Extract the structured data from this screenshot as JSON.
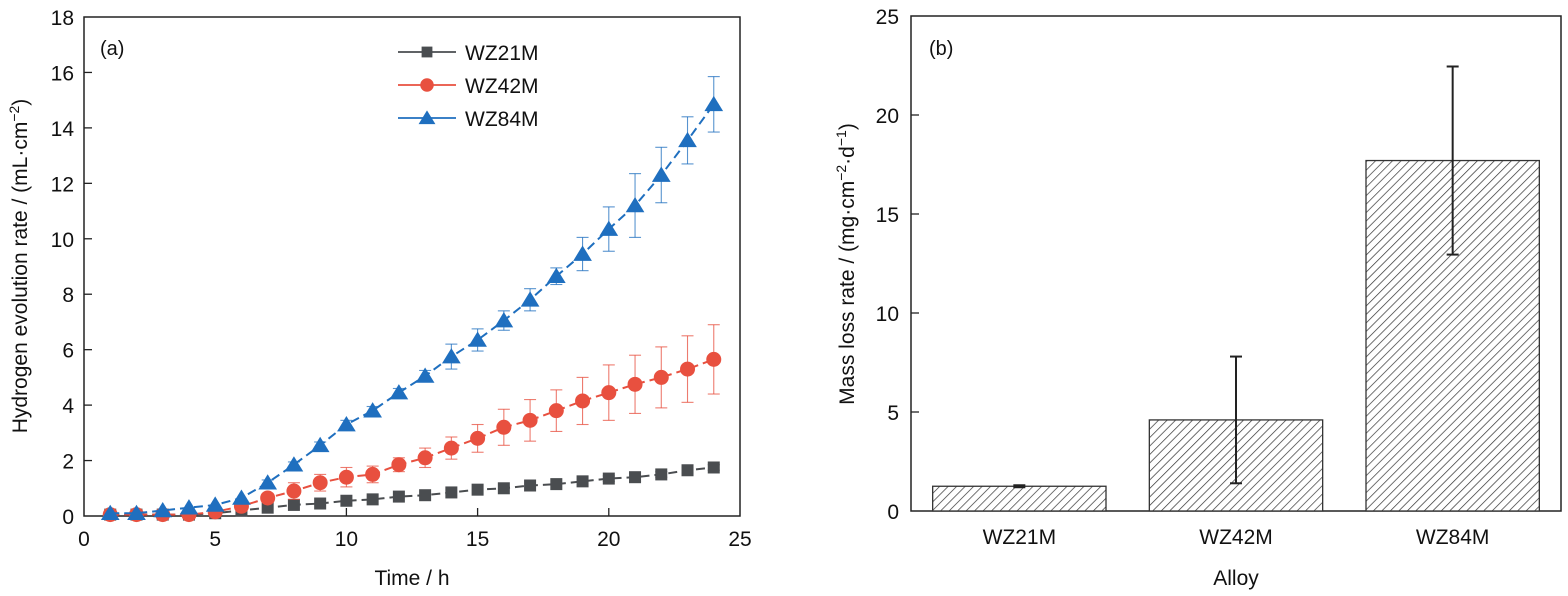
{
  "chart_data": [
    {
      "type": "line",
      "panel_label": "(a)",
      "title": "",
      "xlabel": "Time / h",
      "ylabel": "Hydrogen evolution rate / (mL·cm",
      "ylabel_sup": "−2",
      "ylabel_tail": ")",
      "xlim": [
        0,
        25
      ],
      "ylim": [
        0,
        18
      ],
      "xticks": [
        0,
        5,
        10,
        15,
        20,
        25
      ],
      "yticks": [
        0,
        2,
        4,
        6,
        8,
        10,
        12,
        14,
        16,
        18
      ],
      "grid": false,
      "legend_position": "top-center",
      "x": [
        1,
        2,
        3,
        4,
        5,
        6,
        7,
        8,
        9,
        10,
        11,
        12,
        13,
        14,
        15,
        16,
        17,
        18,
        19,
        20,
        21,
        22,
        23,
        24
      ],
      "series": [
        {
          "name": "WZ21M",
          "color": "#4a4d50",
          "marker": "square",
          "values": [
            0.05,
            0.05,
            0.05,
            0.05,
            0.1,
            0.2,
            0.3,
            0.4,
            0.45,
            0.55,
            0.6,
            0.7,
            0.75,
            0.85,
            0.95,
            1.0,
            1.1,
            1.15,
            1.25,
            1.35,
            1.4,
            1.5,
            1.65,
            1.75
          ],
          "errors": [
            0.02,
            0.02,
            0.02,
            0.02,
            0.03,
            0.03,
            0.04,
            0.05,
            0.05,
            0.06,
            0.06,
            0.06,
            0.07,
            0.07,
            0.07,
            0.08,
            0.08,
            0.08,
            0.09,
            0.1,
            0.15,
            0.1,
            0.1,
            0.1
          ]
        },
        {
          "name": "WZ42M",
          "color": "#e8503f",
          "marker": "circle",
          "values": [
            0.05,
            0.05,
            0.05,
            0.05,
            0.15,
            0.35,
            0.65,
            0.9,
            1.2,
            1.4,
            1.5,
            1.85,
            2.1,
            2.45,
            2.8,
            3.2,
            3.45,
            3.8,
            4.15,
            4.45,
            4.75,
            5.0,
            5.3,
            5.65
          ],
          "errors": [
            0.02,
            0.02,
            0.02,
            0.03,
            0.05,
            0.1,
            0.15,
            0.3,
            0.3,
            0.35,
            0.3,
            0.25,
            0.35,
            0.4,
            0.5,
            0.65,
            0.75,
            0.75,
            0.85,
            1.0,
            1.05,
            1.1,
            1.2,
            1.25
          ]
        },
        {
          "name": "WZ84M",
          "color": "#1f6fbf",
          "marker": "triangle",
          "values": [
            0.1,
            0.1,
            0.2,
            0.3,
            0.4,
            0.65,
            1.2,
            1.85,
            2.55,
            3.3,
            3.8,
            4.45,
            5.05,
            5.75,
            6.35,
            7.05,
            7.8,
            8.65,
            9.45,
            10.35,
            11.2,
            12.3,
            13.55,
            14.85
          ],
          "errors": [
            0.02,
            0.02,
            0.03,
            0.04,
            0.05,
            0.08,
            0.1,
            0.1,
            0.12,
            0.15,
            0.15,
            0.15,
            0.2,
            0.45,
            0.4,
            0.35,
            0.4,
            0.3,
            0.6,
            0.8,
            1.15,
            1.0,
            0.85,
            1.0
          ]
        }
      ]
    },
    {
      "type": "bar",
      "panel_label": "(b)",
      "title": "",
      "xlabel": "Alloy",
      "ylabel": "Mass loss rate / (mg·cm",
      "ylabel_sup1": "−2",
      "ylabel_mid": "·d",
      "ylabel_sup2": "−1",
      "ylabel_tail": ")",
      "ylim": [
        0,
        25
      ],
      "yticks": [
        0,
        5,
        10,
        15,
        20,
        25
      ],
      "grid": false,
      "fill_pattern": "diagonal-hatch",
      "categories": [
        "WZ21M",
        "WZ42M",
        "WZ84M"
      ],
      "values": [
        1.25,
        4.6,
        17.7
      ],
      "error_upper": [
        1.3,
        7.8,
        22.45
      ],
      "error_lower": [
        1.2,
        1.4,
        12.95
      ]
    }
  ]
}
